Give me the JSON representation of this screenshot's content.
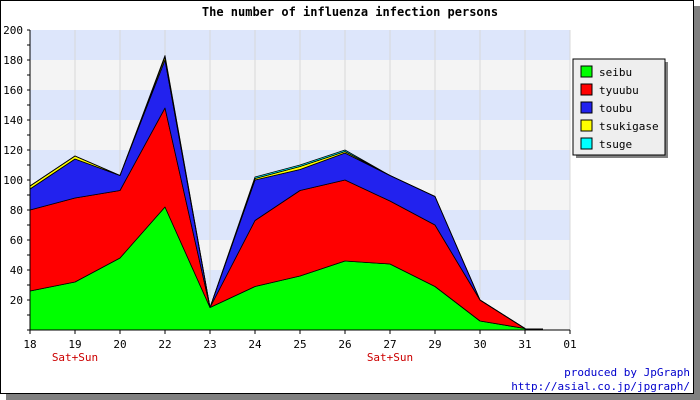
{
  "chart_data": {
    "type": "area",
    "stacked": true,
    "title": "The number of influenza infection persons",
    "xlabel": "",
    "ylabel": "",
    "categories": [
      "18",
      "19",
      "20",
      "22",
      "23",
      "24",
      "25",
      "26",
      "27",
      "29",
      "30",
      "31",
      "01"
    ],
    "weekend_labels": [
      {
        "category": "19",
        "text": "Sat+Sun"
      },
      {
        "category": "27",
        "text": "Sat+Sun"
      }
    ],
    "ylim": [
      0,
      200
    ],
    "yticks": [
      20,
      40,
      60,
      80,
      100,
      120,
      140,
      160,
      180,
      200
    ],
    "grid": true,
    "legend_position": "right",
    "series": [
      {
        "name": "seibu",
        "color": "#00ff00",
        "values": [
          26,
          32,
          48,
          82,
          15,
          29,
          36,
          46,
          44,
          29,
          6,
          1,
          null
        ]
      },
      {
        "name": "tyuubu",
        "color": "#ff0000",
        "values": [
          54,
          56,
          45,
          66,
          0,
          44,
          57,
          54,
          42,
          41,
          14,
          0,
          null
        ]
      },
      {
        "name": "toubu",
        "color": "#2222ee",
        "values": [
          14,
          26,
          10,
          32,
          0,
          27,
          14,
          18,
          17,
          19,
          0,
          0,
          null
        ]
      },
      {
        "name": "tsukigase",
        "color": "#ffff00",
        "values": [
          2,
          2,
          0,
          2,
          0,
          1,
          2,
          1,
          0,
          0,
          0,
          0,
          null
        ]
      },
      {
        "name": "tsuge",
        "color": "#00ffff",
        "values": [
          0,
          0,
          0,
          1,
          0,
          1,
          1,
          1,
          0,
          0,
          0,
          0,
          null
        ]
      }
    ]
  },
  "credits": {
    "line1": "produced by JpGraph",
    "line2": "http://asial.co.jp/jpgraph/"
  }
}
